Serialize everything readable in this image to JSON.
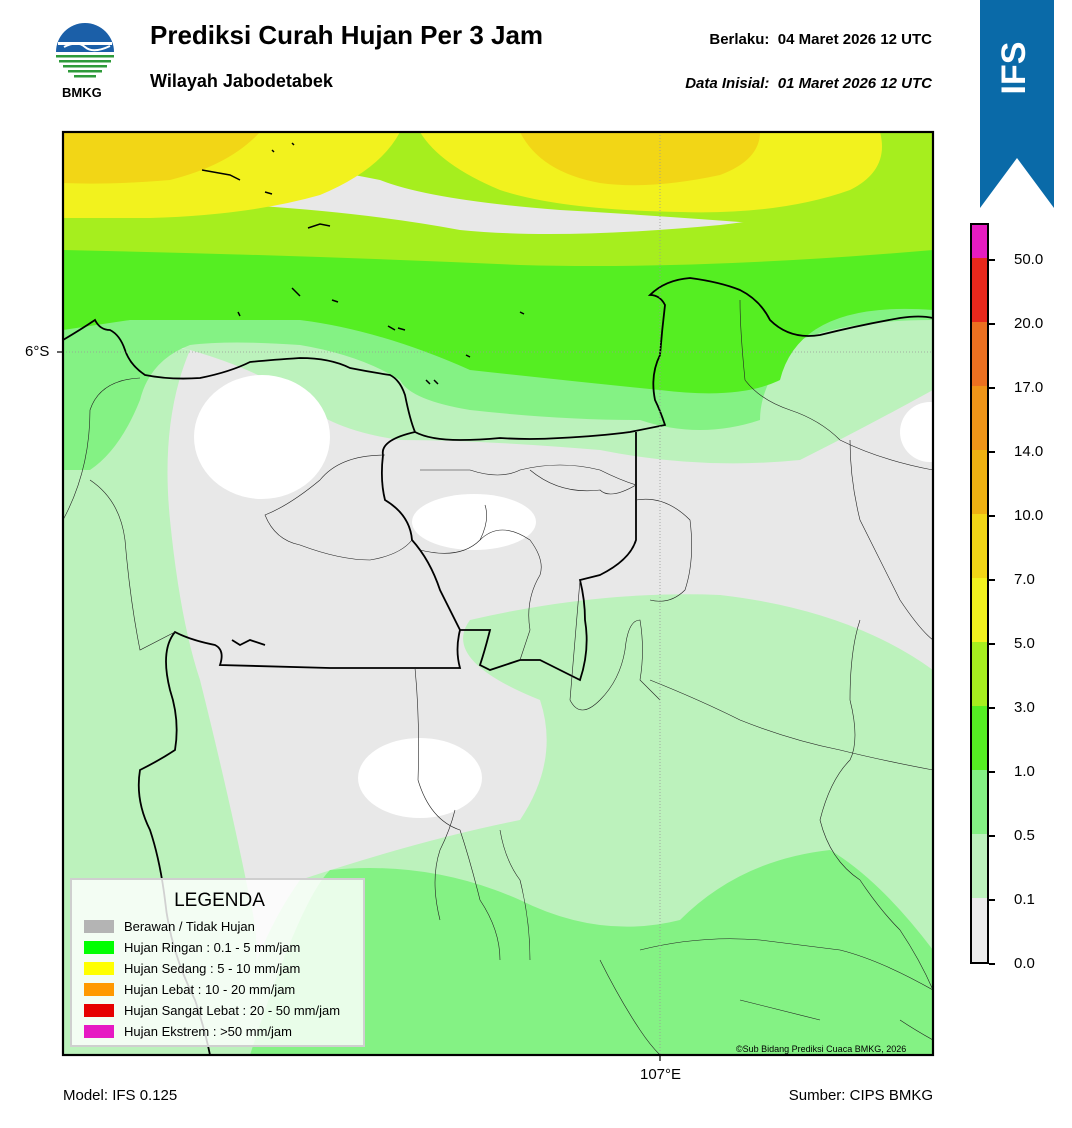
{
  "header": {
    "title": "Prediksi Curah Hujan Per 3 Jam",
    "subtitle": "Wilayah Jabodetabek",
    "valid_label": "Berlaku:",
    "valid_value": "04 Maret 2026 12 UTC",
    "init_label": "Data Inisial:",
    "init_value": "01 Maret 2026 12 UTC",
    "logo_text": "BMKG"
  },
  "badge": {
    "text": "IFS",
    "color": "#0a6aa8"
  },
  "map": {
    "lat_label": "6°S",
    "lon_label": "107°E",
    "credit": "©Sub Bidang Prediksi Cuaca BMKG, 2026"
  },
  "legend": {
    "title": "LEGENDA",
    "items": [
      {
        "label": "Berawan / Tidak Hujan",
        "color": "#b4b4b4"
      },
      {
        "label": "Hujan Ringan : 0.1 - 5 mm/jam",
        "color": "#00ff00"
      },
      {
        "label": "Hujan Sedang : 5 - 10 mm/jam",
        "color": "#ffff00"
      },
      {
        "label": "Hujan Lebat : 10 - 20 mm/jam",
        "color": "#ff9900"
      },
      {
        "label": "Hujan Sangat Lebat : 20 - 50 mm/jam",
        "color": "#e60000"
      },
      {
        "label": "Hujan Ekstrem : >50 mm/jam",
        "color": "#e619c3"
      }
    ]
  },
  "colorbar": {
    "ticks": [
      "0.0",
      "0.1",
      "0.5",
      "1.0",
      "3.0",
      "5.0",
      "7.0",
      "10.0",
      "14.0",
      "17.0",
      "20.0",
      "50.0"
    ],
    "colors": [
      "#ebebeb",
      "#bcf2bc",
      "#84f284",
      "#55ee22",
      "#a6ee1e",
      "#f2f21e",
      "#f2d616",
      "#eeb112",
      "#ef9418",
      "#ec7020",
      "#e8281c",
      "#e61cc0"
    ]
  },
  "footer": {
    "model": "Model: IFS 0.125",
    "source": "Sumber: CIPS BMKG"
  }
}
